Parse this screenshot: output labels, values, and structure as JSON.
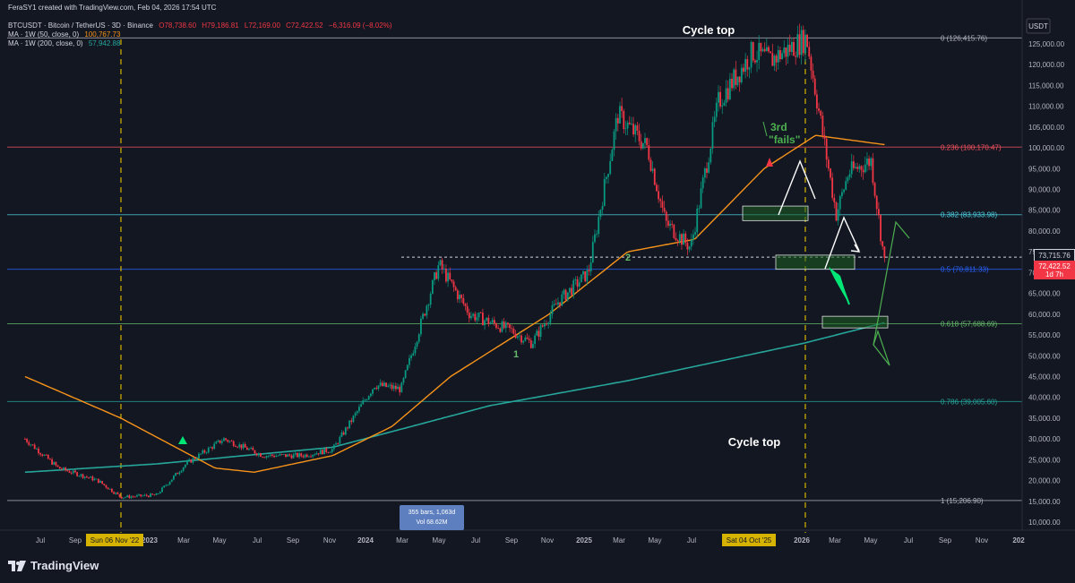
{
  "header": {
    "line1": "FeraSY1 created with TradingView.com, Feb 04, 2026 17:54 UTC",
    "symbol": "BTCUSDT · Bitcoin / TetherUS · 3D · Binance",
    "o": "O78,738.60",
    "h": "H79,186.81",
    "l": "L72,169.00",
    "c": "C72,422.52",
    "chg": "−6,316.09 (−8.02%)",
    "ma50_label": "MA · 1W (50, close, 0)",
    "ma50_value": "100,767.73",
    "ma200_label": "MA · 1W (200, close, 0)",
    "ma200_value": "57,942.88"
  },
  "currency": "USDT",
  "annotations": {
    "cycle_top_upper": "Cycle top",
    "cycle_top_lower": "Cycle top",
    "third": "3rd",
    "fails": "\"fails\"",
    "label_1": "1",
    "label_2": "2",
    "measure_bars": "355 bars, 1,063d",
    "measure_vol": "Vol 68.62M",
    "date_left": "Sun 06 Nov '22",
    "date_right": "Sat 04 Oct '25"
  },
  "price_labels": {
    "dashed": "73,715.76",
    "current": "72,422.52",
    "countdown": "1d 7h"
  },
  "colors": {
    "background": "#131722",
    "up": "#089981",
    "down": "#f23645",
    "ma50": "#f7931a",
    "ma200": "#26a69a",
    "current": "#f23645"
  },
  "chart_data": {
    "type": "line",
    "title": "",
    "xlabel": "",
    "ylabel": "",
    "ylim": [
      10000,
      130000
    ],
    "x_ticks": [
      "Jul",
      "Sep",
      "2023",
      "Mar",
      "May",
      "Jul",
      "Sep",
      "Nov",
      "2024",
      "Mar",
      "May",
      "Jul",
      "Sep",
      "Nov",
      "2025",
      "Mar",
      "May",
      "Jul",
      "2026",
      "Mar",
      "May",
      "Jul",
      "Sep",
      "Nov",
      "202"
    ],
    "y_ticks": [
      "125,000.00",
      "120,000.00",
      "115,000.00",
      "110,000.00",
      "105,000.00",
      "100,000.00",
      "95,000.00",
      "90,000.00",
      "85,000.00",
      "80,000.00",
      "75,000.00",
      "70,000.00",
      "65,000.00",
      "60,000.00",
      "55,000.00",
      "50,000.00",
      "45,000.00",
      "40,000.00",
      "35,000.00",
      "30,000.00",
      "25,000.00",
      "20,000.00",
      "15,000.00",
      "10,000.00"
    ],
    "fib_levels": [
      {
        "label": "0 (126,415.76)",
        "value": 126415.76,
        "color": "#b2b5be"
      },
      {
        "label": "0.236 (100,170.47)",
        "value": 100170.47,
        "color": "#f7525f"
      },
      {
        "label": "0.382 (83,933.98)",
        "value": 83933.98,
        "color": "#4dd0e1"
      },
      {
        "label": "0.5 (70,811.33)",
        "value": 70811.33,
        "color": "#2962ff"
      },
      {
        "label": "0.618 (57,688.69)",
        "value": 57688.69,
        "color": "#66bb6a"
      },
      {
        "label": "0.786 (39,005.60)",
        "value": 39005.6,
        "color": "#26a69a"
      },
      {
        "label": "1 (15,206.90)",
        "value": 15206.9,
        "color": "#b2b5be"
      }
    ],
    "price_series": {
      "name": "BTCUSDT",
      "x": [
        "2022-06-10",
        "2022-08-01",
        "2022-10-01",
        "2022-11-06",
        "2022-12-31",
        "2023-02-15",
        "2023-04-15",
        "2023-06-15",
        "2023-08-15",
        "2023-10-01",
        "2023-12-05",
        "2024-01-15",
        "2024-03-14",
        "2024-05-01",
        "2024-07-05",
        "2024-08-05",
        "2024-09-15",
        "2024-11-01",
        "2024-12-17",
        "2025-02-01",
        "2025-03-01",
        "2025-04-09",
        "2025-05-22",
        "2025-07-14",
        "2025-08-10",
        "2025-10-06",
        "2025-11-21",
        "2025-12-10",
        "2026-01-14",
        "2026-02-04"
      ],
      "y": [
        30000,
        23000,
        20000,
        16000,
        16500,
        24000,
        30000,
        26000,
        26000,
        27500,
        43000,
        42000,
        72000,
        60000,
        56000,
        53000,
        63000,
        70000,
        108000,
        100000,
        82000,
        76000,
        111000,
        123000,
        121000,
        126400,
        84000,
        94000,
        97000,
        72422
      ]
    },
    "series": [
      {
        "name": "MA · 1W (50, close, 0)",
        "x": [
          "2022-06-10",
          "2022-11-06",
          "2023-04-01",
          "2023-06-01",
          "2023-10-01",
          "2024-01-01",
          "2024-04-01",
          "2024-09-01",
          "2025-01-01",
          "2025-04-15",
          "2025-08-01",
          "2025-10-20",
          "2026-02-04"
        ],
        "y": [
          45000,
          35000,
          23000,
          22000,
          26000,
          33000,
          45000,
          60000,
          75000,
          78000,
          95000,
          103000,
          100767.73
        ]
      },
      {
        "name": "MA · 1W (200, close, 0)",
        "x": [
          "2022-06-10",
          "2023-01-01",
          "2023-10-01",
          "2024-06-01",
          "2025-01-01",
          "2025-10-01",
          "2026-02-04"
        ],
        "y": [
          22000,
          24000,
          28000,
          38000,
          44000,
          53000,
          57942.88
        ]
      }
    ]
  }
}
